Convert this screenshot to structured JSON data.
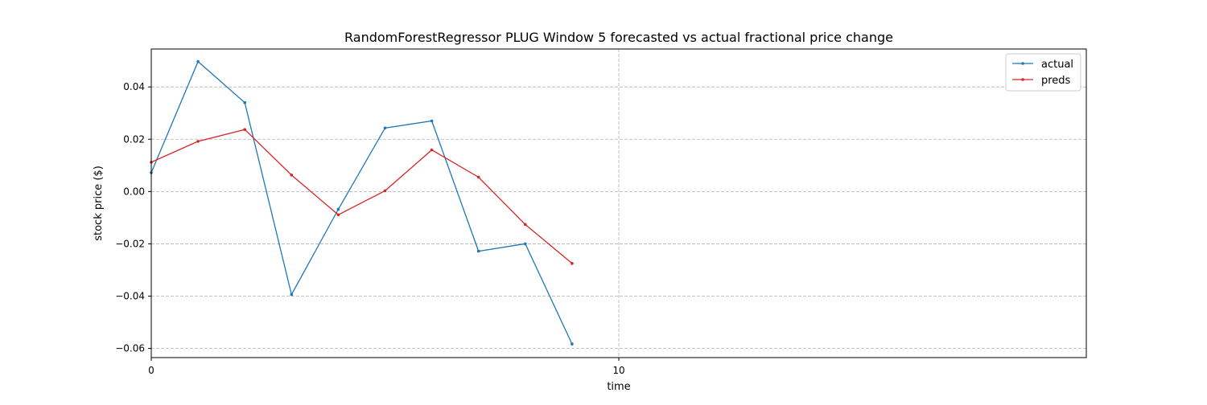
{
  "chart_data": {
    "type": "line",
    "title": "RandomForestRegressor PLUG Window 5 forecasted vs actual fractional price change",
    "xlabel": "time",
    "ylabel": "stock price ($)",
    "xlim": [
      0,
      20
    ],
    "ylim": [
      -0.0635,
      0.0545
    ],
    "x_ticks": [
      0,
      10
    ],
    "y_ticks": [
      -0.06,
      -0.04,
      -0.02,
      0.0,
      0.02,
      0.04
    ],
    "y_tick_labels": [
      "−0.06",
      "−0.04",
      "−0.02",
      "0.00",
      "0.02",
      "0.04"
    ],
    "grid": true,
    "grid_style": "dashed",
    "legend_position": "top-right",
    "series": [
      {
        "name": "actual",
        "color": "#1f77b4",
        "x": [
          0,
          1,
          2,
          3,
          4,
          5,
          6,
          7,
          8,
          9
        ],
        "values": [
          0.0072,
          0.0497,
          0.034,
          -0.0394,
          -0.0068,
          0.0243,
          0.027,
          -0.0228,
          -0.02,
          -0.0583
        ]
      },
      {
        "name": "preds",
        "color": "#d62728",
        "x": [
          0,
          1,
          2,
          3,
          4,
          5,
          6,
          7,
          8,
          9
        ],
        "values": [
          0.0112,
          0.0192,
          0.0237,
          0.0063,
          -0.0089,
          0.0003,
          0.0159,
          0.0055,
          -0.0126,
          -0.0275
        ]
      }
    ]
  }
}
